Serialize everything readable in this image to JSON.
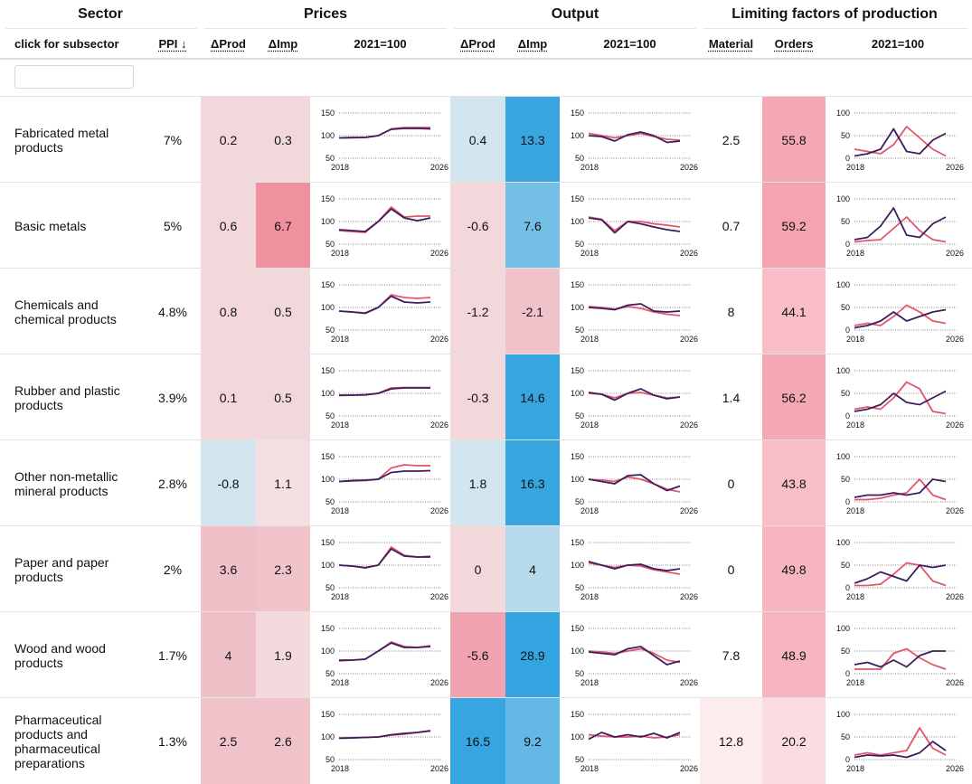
{
  "groups": {
    "sector": "Sector",
    "prices": "Prices",
    "output": "Output",
    "limiting": "Limiting factors of production"
  },
  "columns": {
    "subsector": "click for subsector",
    "ppi": "PPI ↓",
    "dprod": "ΔProd",
    "dimp": "ΔImp",
    "index": "2021=100",
    "material": "Material",
    "orders": "Orders"
  },
  "filter": {
    "value": ""
  },
  "spark_axis": {
    "price_ticks": [
      "150",
      "100",
      "50"
    ],
    "limit_ticks": [
      "100",
      "50",
      "0"
    ],
    "start_year": "2018",
    "end_year": "2026"
  },
  "colors": {
    "series_a": "#e2566a",
    "series_b": "#3d1d5c",
    "neg_light": "#d3e5ee",
    "pos_light": "#f2d7db"
  },
  "rows": [
    {
      "sector": "Fabricated metal products",
      "ppi": "7%",
      "price_dprod": "0.2",
      "price_dimp": "0.3",
      "out_dprod": "0.4",
      "out_dimp": "13.3",
      "material": "2.5",
      "orders": "55.8",
      "bg": {
        "price_dprod": "#f2d7db",
        "price_dimp": "#f2d7db",
        "out_dprod": "#d3e5ee",
        "out_dimp": "#3aa6df",
        "material": "#ffffff",
        "orders": "#f4a8b3"
      }
    },
    {
      "sector": "Basic metals",
      "ppi": "5%",
      "price_dprod": "0.6",
      "price_dimp": "6.7",
      "out_dprod": "-0.6",
      "out_dimp": "7.6",
      "material": "0.7",
      "orders": "59.2",
      "bg": {
        "price_dprod": "#f2d7db",
        "price_dimp": "#f0919f",
        "out_dprod": "#f2d7db",
        "out_dimp": "#74bfe6",
        "material": "#ffffff",
        "orders": "#f4a3af"
      }
    },
    {
      "sector": "Chemicals and chemical products",
      "ppi": "4.8%",
      "price_dprod": "0.8",
      "price_dimp": "0.5",
      "out_dprod": "-1.2",
      "out_dimp": "-2.1",
      "material": "8",
      "orders": "44.1",
      "bg": {
        "price_dprod": "#f2d7db",
        "price_dimp": "#f2d7db",
        "out_dprod": "#f2d7db",
        "out_dimp": "#f0c3ca",
        "material": "#ffffff",
        "orders": "#f8bdc6"
      }
    },
    {
      "sector": "Rubber and plastic products",
      "ppi": "3.9%",
      "price_dprod": "0.1",
      "price_dimp": "0.5",
      "out_dprod": "-0.3",
      "out_dimp": "14.6",
      "material": "1.4",
      "orders": "56.2",
      "bg": {
        "price_dprod": "#f2d7db",
        "price_dimp": "#f2d7db",
        "out_dprod": "#f2d7db",
        "out_dimp": "#37a5df",
        "material": "#ffffff",
        "orders": "#f4a8b3"
      }
    },
    {
      "sector": "Other non-metallic mineral products",
      "ppi": "2.8%",
      "price_dprod": "-0.8",
      "price_dimp": "1.1",
      "out_dprod": "1.8",
      "out_dimp": "16.3",
      "material": "0",
      "orders": "43.8",
      "bg": {
        "price_dprod": "#d3e5ee",
        "price_dimp": "#f5dfe2",
        "out_dprod": "#d3e5ee",
        "out_dimp": "#36a5e0",
        "material": "#ffffff",
        "orders": "#f8bec7"
      }
    },
    {
      "sector": "Paper and paper products",
      "ppi": "2%",
      "price_dprod": "3.6",
      "price_dimp": "2.3",
      "out_dprod": "0",
      "out_dimp": "4",
      "material": "0",
      "orders": "49.8",
      "bg": {
        "price_dprod": "#f0c0c8",
        "price_dimp": "#f0c3ca",
        "out_dprod": "#f2d7db",
        "out_dimp": "#b6d9ec",
        "material": "#ffffff",
        "orders": "#f7b5bf"
      }
    },
    {
      "sector": "Wood and wood products",
      "ppi": "1.7%",
      "price_dprod": "4",
      "price_dimp": "1.9",
      "out_dprod": "-5.6",
      "out_dimp": "28.9",
      "material": "7.8",
      "orders": "48.9",
      "bg": {
        "price_dprod": "#f0c0c8",
        "price_dimp": "#f4dadd",
        "out_dprod": "#f1a4b0",
        "out_dimp": "#34a4e0",
        "material": "#ffffff",
        "orders": "#f7b5bf"
      }
    },
    {
      "sector": "Pharmaceutical products and pharmaceutical preparations",
      "ppi": "1.3%",
      "price_dprod": "2.5",
      "price_dimp": "2.6",
      "out_dprod": "16.5",
      "out_dimp": "9.2",
      "material": "12.8",
      "orders": "20.2",
      "bg": {
        "price_dprod": "#f0c3ca",
        "price_dimp": "#f0c3ca",
        "out_dprod": "#36a5e0",
        "out_dimp": "#63b8e5",
        "material": "#fcecee",
        "orders": "#fadde1"
      }
    }
  ],
  "chart_data": [
    {
      "type": "line",
      "title": "Prices 2021=100 (sparklines)",
      "x": [
        2018,
        2019,
        2020,
        2021,
        2022,
        2023,
        2024,
        2025
      ],
      "series": [
        {
          "name": "Fabricated metal products",
          "a": [
            95,
            95,
            96,
            100,
            115,
            118,
            118,
            118
          ],
          "b": [
            95,
            96,
            96,
            100,
            114,
            116,
            116,
            115
          ]
        },
        {
          "name": "Basic metals",
          "a": [
            80,
            78,
            76,
            100,
            132,
            110,
            112,
            112
          ],
          "b": [
            82,
            80,
            78,
            100,
            128,
            108,
            102,
            108
          ]
        },
        {
          "name": "Chemicals and chemical products",
          "a": [
            92,
            90,
            88,
            100,
            128,
            122,
            120,
            122
          ],
          "b": [
            92,
            90,
            87,
            100,
            125,
            112,
            110,
            112
          ]
        },
        {
          "name": "Rubber and plastic products",
          "a": [
            95,
            96,
            96,
            100,
            112,
            113,
            113,
            113
          ],
          "b": [
            96,
            96,
            97,
            100,
            110,
            112,
            112,
            112
          ]
        },
        {
          "name": "Other non-metallic mineral products",
          "a": [
            95,
            96,
            97,
            100,
            125,
            132,
            130,
            130
          ],
          "b": [
            95,
            97,
            98,
            100,
            115,
            118,
            118,
            119
          ]
        },
        {
          "name": "Paper and paper products",
          "a": [
            100,
            98,
            95,
            100,
            140,
            122,
            118,
            120
          ],
          "b": [
            100,
            98,
            94,
            100,
            136,
            120,
            118,
            118
          ]
        },
        {
          "name": "Wood and wood products",
          "a": [
            78,
            80,
            82,
            100,
            120,
            110,
            108,
            112
          ],
          "b": [
            80,
            80,
            82,
            100,
            118,
            108,
            108,
            110
          ]
        },
        {
          "name": "Pharmaceutical products and pharmaceutical preparations",
          "a": [
            98,
            98,
            99,
            100,
            104,
            106,
            110,
            113
          ],
          "b": [
            97,
            98,
            99,
            100,
            105,
            108,
            110,
            114
          ]
        }
      ]
    },
    {
      "type": "line",
      "title": "Output 2021=100 (sparklines)",
      "x": [
        2018,
        2019,
        2020,
        2021,
        2022,
        2023,
        2024,
        2025
      ],
      "series": [
        {
          "name": "Fabricated metal products",
          "a": [
            105,
            100,
            95,
            100,
            105,
            98,
            92,
            90
          ],
          "b": [
            100,
            98,
            88,
            102,
            108,
            100,
            85,
            88
          ]
        },
        {
          "name": "Basic metals",
          "a": [
            110,
            105,
            80,
            100,
            100,
            95,
            92,
            88
          ],
          "b": [
            108,
            104,
            75,
            100,
            95,
            88,
            82,
            78
          ]
        },
        {
          "name": "Chemicals and chemical products",
          "a": [
            102,
            100,
            96,
            102,
            98,
            90,
            85,
            82
          ],
          "b": [
            100,
            98,
            95,
            105,
            108,
            92,
            90,
            92
          ]
        },
        {
          "name": "Rubber and plastic products",
          "a": [
            100,
            98,
            90,
            100,
            102,
            96,
            90,
            92
          ],
          "b": [
            102,
            98,
            85,
            100,
            110,
            96,
            88,
            92
          ]
        },
        {
          "name": "Other non-metallic mineral products",
          "a": [
            100,
            98,
            95,
            105,
            100,
            90,
            78,
            72
          ],
          "b": [
            100,
            95,
            90,
            108,
            110,
            90,
            75,
            85
          ]
        },
        {
          "name": "Paper and paper products",
          "a": [
            105,
            100,
            95,
            100,
            98,
            90,
            85,
            80
          ],
          "b": [
            108,
            100,
            92,
            100,
            102,
            92,
            88,
            92
          ]
        },
        {
          "name": "Wood and wood products",
          "a": [
            100,
            98,
            95,
            100,
            105,
            95,
            80,
            75
          ],
          "b": [
            98,
            95,
            92,
            105,
            110,
            90,
            70,
            78
          ]
        },
        {
          "name": "Pharmaceutical products and pharmaceutical preparations",
          "a": [
            105,
            102,
            100,
            100,
            102,
            98,
            100,
            105
          ],
          "b": [
            95,
            110,
            100,
            105,
            100,
            108,
            98,
            110
          ]
        }
      ]
    },
    {
      "type": "line",
      "title": "Limiting factors (sparklines, 0-100)",
      "x": [
        2018,
        2019,
        2020,
        2021,
        2022,
        2023,
        2024,
        2025
      ],
      "series": [
        {
          "name": "Fabricated metal products",
          "a": [
            20,
            15,
            10,
            30,
            70,
            45,
            20,
            5
          ],
          "b": [
            5,
            10,
            20,
            65,
            15,
            10,
            40,
            55
          ]
        },
        {
          "name": "Basic metals",
          "a": [
            5,
            8,
            10,
            35,
            60,
            30,
            10,
            5
          ],
          "b": [
            10,
            15,
            40,
            80,
            20,
            15,
            45,
            60
          ]
        },
        {
          "name": "Chemicals and chemical products",
          "a": [
            10,
            15,
            10,
            30,
            55,
            40,
            20,
            15
          ],
          "b": [
            5,
            10,
            20,
            40,
            20,
            30,
            40,
            45
          ]
        },
        {
          "name": "Rubber and plastic products",
          "a": [
            15,
            20,
            15,
            40,
            75,
            60,
            10,
            5
          ],
          "b": [
            10,
            15,
            25,
            50,
            30,
            25,
            40,
            55
          ]
        },
        {
          "name": "Other non-metallic mineral products",
          "a": [
            5,
            5,
            8,
            15,
            20,
            50,
            15,
            5
          ],
          "b": [
            10,
            15,
            15,
            20,
            15,
            20,
            50,
            45
          ]
        },
        {
          "name": "Paper and paper products",
          "a": [
            5,
            5,
            8,
            30,
            55,
            50,
            15,
            5
          ],
          "b": [
            10,
            20,
            35,
            25,
            15,
            50,
            45,
            50
          ]
        },
        {
          "name": "Wood and wood products",
          "a": [
            10,
            10,
            10,
            45,
            55,
            35,
            20,
            10
          ],
          "b": [
            20,
            25,
            15,
            30,
            15,
            40,
            50,
            50
          ]
        },
        {
          "name": "Pharmaceutical products and pharmaceutical preparations",
          "a": [
            10,
            15,
            10,
            15,
            20,
            70,
            25,
            10
          ],
          "b": [
            5,
            10,
            8,
            10,
            5,
            15,
            40,
            20
          ]
        }
      ]
    }
  ]
}
